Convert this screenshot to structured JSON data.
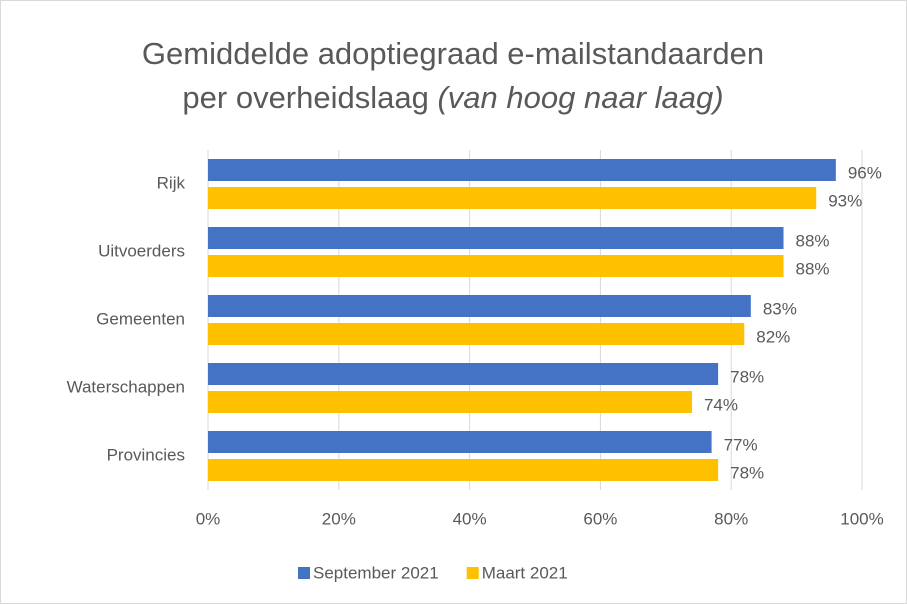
{
  "chart_data": {
    "type": "bar",
    "orientation": "horizontal",
    "title": {
      "line1": "Gemiddelde adoptiegraad e-mailstandaarden",
      "line2": "per overheidslaag",
      "note": "(van hoog naar laag)"
    },
    "categories": [
      "Rijk",
      "Uitvoerders",
      "Gemeenten",
      "Waterschappen",
      "Provincies"
    ],
    "series": [
      {
        "name": "September 2021",
        "color": "#4472c4",
        "values": [
          96,
          88,
          83,
          78,
          77
        ],
        "value_labels": [
          "96%",
          "88%",
          "83%",
          "78%",
          "77%"
        ]
      },
      {
        "name": "Maart 2021",
        "color": "#ffc000",
        "values": [
          93,
          88,
          82,
          74,
          78
        ],
        "value_labels": [
          "93%",
          "88%",
          "82%",
          "74%",
          "78%"
        ]
      }
    ],
    "xlim": [
      0,
      100
    ],
    "xticks": [
      {
        "value": 0,
        "label": "0%"
      },
      {
        "value": 20,
        "label": "20%"
      },
      {
        "value": 40,
        "label": "40%"
      },
      {
        "value": 60,
        "label": "60%"
      },
      {
        "value": 80,
        "label": "80%"
      },
      {
        "value": 100,
        "label": "100%"
      }
    ],
    "grid": true,
    "legend": "bottom"
  }
}
